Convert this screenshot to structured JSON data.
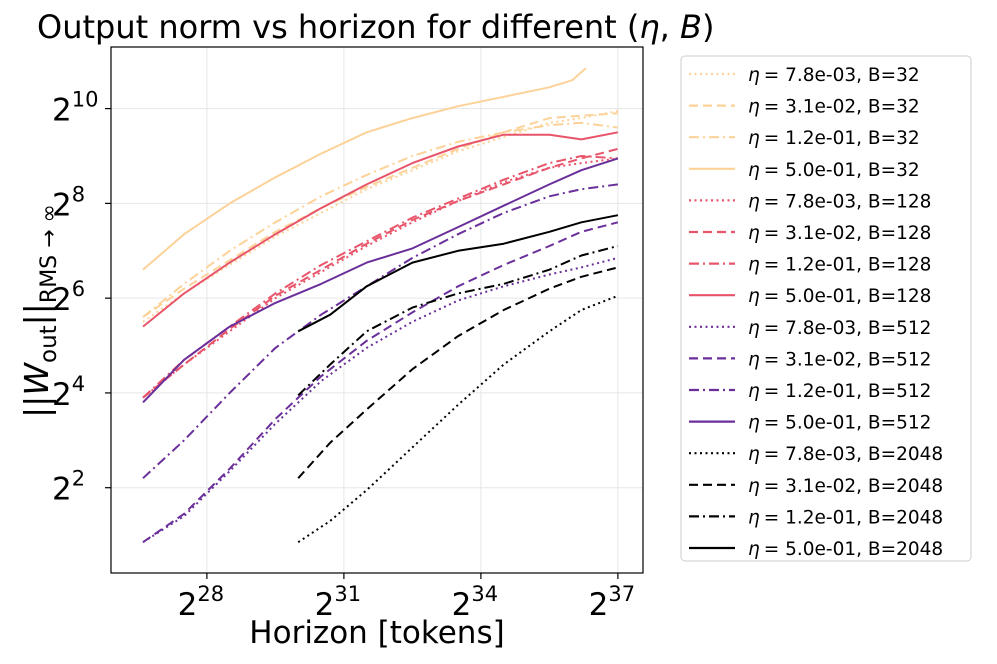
{
  "chart_data": {
    "type": "line",
    "title": "Output norm vs horizon for different (η, B)",
    "title_text": "Output norm vs horizon for different (",
    "title_eta": "η",
    "title_sep": ", ",
    "title_b": "B",
    "title_close": ")",
    "xlabel": "Horizon [tokens]",
    "ylabel": "||W_out||_RMS→∞",
    "ylabel_parts": {
      "bars_open": "||",
      "W": "W",
      "sub_out": "out",
      "bars_close": "||",
      "sub_rms": "RMS → ∞"
    },
    "x_scale": "log2",
    "y_scale": "log2",
    "xlim_log2": [
      25.9,
      37.55
    ],
    "ylim_log2": [
      0.2,
      11.3
    ],
    "grid": true,
    "legend_position": "outside-right",
    "xticks": [
      {
        "exp": 28,
        "base": "2",
        "sup": "28"
      },
      {
        "exp": 31,
        "base": "2",
        "sup": "31"
      },
      {
        "exp": 34,
        "base": "2",
        "sup": "34"
      },
      {
        "exp": 37,
        "base": "2",
        "sup": "37"
      }
    ],
    "yticks": [
      {
        "exp": 2,
        "base": "2",
        "sup": "2"
      },
      {
        "exp": 4,
        "base": "2",
        "sup": "4"
      },
      {
        "exp": 6,
        "base": "2",
        "sup": "6"
      },
      {
        "exp": 8,
        "base": "2",
        "sup": "8"
      },
      {
        "exp": 10,
        "base": "2",
        "sup": "10"
      }
    ],
    "series": [
      {
        "name": "η = 7.8e-03, B=32",
        "label": "= 7.8e-03, B=32",
        "color": "#fcd298",
        "dash": "dotted",
        "x": [
          26.6,
          27.5,
          28.5,
          29.5,
          30.5,
          31.5,
          32.5,
          33.5,
          34.5,
          35.5,
          36.2,
          37.0
        ],
        "y": [
          5.5,
          6.1,
          6.7,
          7.3,
          7.8,
          8.3,
          8.7,
          9.1,
          9.4,
          9.7,
          9.8,
          9.95
        ]
      },
      {
        "name": "η = 3.1e-02, B=32",
        "label": "= 3.1e-02, B=32",
        "color": "#fcd298",
        "dash": "dashed",
        "x": [
          26.6,
          27.5,
          28.5,
          29.5,
          30.5,
          31.5,
          32.5,
          33.5,
          34.5,
          35.5,
          36.2,
          37.0
        ],
        "y": [
          5.6,
          6.2,
          6.8,
          7.4,
          7.9,
          8.35,
          8.75,
          9.15,
          9.5,
          9.8,
          9.85,
          9.9
        ]
      },
      {
        "name": "η = 1.2e-01, B=32",
        "label": "= 1.2e-01, B=32",
        "color": "#fcd298",
        "dash": "dashdot",
        "x": [
          26.6,
          27.5,
          28.5,
          29.5,
          30.5,
          31.5,
          32.5,
          33.5,
          34.5,
          35.5,
          36.2,
          37.0
        ],
        "y": [
          5.6,
          6.3,
          7.0,
          7.6,
          8.15,
          8.6,
          9.0,
          9.3,
          9.5,
          9.65,
          9.7,
          9.6
        ]
      },
      {
        "name": "η = 5.0e-01, B=32",
        "label": "= 5.0e-01, B=32",
        "color": "#fcd298",
        "dash": "solid",
        "x": [
          26.6,
          27.5,
          28.5,
          29.5,
          30.5,
          31.5,
          32.5,
          33.5,
          34.5,
          35.5,
          36.0,
          36.3
        ],
        "y": [
          6.6,
          7.35,
          8.0,
          8.55,
          9.05,
          9.5,
          9.8,
          10.05,
          10.25,
          10.45,
          10.6,
          10.85
        ]
      },
      {
        "name": "η = 7.8e-03, B=128",
        "label": "= 7.8e-03, B=128",
        "color": "#e8556a",
        "dash": "dotted",
        "x": [
          26.6,
          27.5,
          28.5,
          29.5,
          30.5,
          31.5,
          32.5,
          33.5,
          34.5,
          35.5,
          36.2,
          37.0
        ],
        "y": [
          3.9,
          4.6,
          5.3,
          6.0,
          6.55,
          7.1,
          7.6,
          8.05,
          8.45,
          8.75,
          8.85,
          8.95
        ]
      },
      {
        "name": "η = 3.1e-02, B=128",
        "label": "= 3.1e-02, B=128",
        "color": "#e8556a",
        "dash": "dashed",
        "x": [
          26.6,
          27.5,
          28.5,
          29.5,
          30.5,
          31.5,
          32.5,
          33.5,
          34.5,
          35.5,
          36.2,
          37.0
        ],
        "y": [
          3.9,
          4.6,
          5.35,
          6.05,
          6.6,
          7.15,
          7.65,
          8.05,
          8.4,
          8.75,
          8.95,
          9.15
        ]
      },
      {
        "name": "η = 1.2e-01, B=128",
        "label": "= 1.2e-01, B=128",
        "color": "#e8556a",
        "dash": "dashdot",
        "x": [
          26.6,
          27.5,
          28.5,
          29.5,
          30.5,
          31.5,
          32.5,
          33.5,
          34.5,
          35.5,
          36.2,
          37.0
        ],
        "y": [
          3.9,
          4.7,
          5.4,
          6.1,
          6.7,
          7.2,
          7.7,
          8.1,
          8.5,
          8.85,
          9.0,
          8.95
        ]
      },
      {
        "name": "η = 5.0e-01, B=128",
        "label": "= 5.0e-01, B=128",
        "color": "#e8556a",
        "dash": "solid",
        "x": [
          26.6,
          27.5,
          28.5,
          29.5,
          30.5,
          31.5,
          32.5,
          33.5,
          34.5,
          35.5,
          36.2,
          37.0
        ],
        "y": [
          5.4,
          6.1,
          6.75,
          7.35,
          7.9,
          8.4,
          8.85,
          9.2,
          9.45,
          9.45,
          9.35,
          9.5
        ]
      },
      {
        "name": "η = 7.8e-03, B=512",
        "label": "= 7.8e-03, B=512",
        "color": "#6a2f9a",
        "dash": "dotted",
        "x": [
          26.6,
          27.5,
          28.5,
          29.5,
          30.5,
          31.5,
          32.5,
          33.5,
          34.5,
          35.5,
          36.2,
          37.0
        ],
        "y": [
          0.85,
          1.4,
          2.35,
          3.35,
          4.25,
          4.95,
          5.5,
          5.95,
          6.25,
          6.5,
          6.65,
          6.85
        ]
      },
      {
        "name": "η = 3.1e-02, B=512",
        "label": "= 3.1e-02, B=512",
        "color": "#6a2f9a",
        "dash": "dashed",
        "x": [
          26.6,
          27.5,
          28.5,
          29.5,
          30.5,
          31.5,
          32.5,
          33.5,
          34.5,
          35.5,
          36.2,
          37.0
        ],
        "y": [
          0.85,
          1.45,
          2.4,
          3.45,
          4.35,
          5.1,
          5.7,
          6.25,
          6.7,
          7.1,
          7.4,
          7.6
        ]
      },
      {
        "name": "η = 1.2e-01, B=512",
        "label": "= 1.2e-01, B=512",
        "color": "#6a2f9a",
        "dash": "dashdot",
        "x": [
          26.6,
          27.5,
          28.5,
          29.5,
          30.5,
          31.5,
          32.5,
          33.5,
          34.5,
          35.5,
          36.2,
          37.0
        ],
        "y": [
          2.2,
          3.0,
          4.0,
          4.95,
          5.65,
          6.25,
          6.85,
          7.35,
          7.8,
          8.15,
          8.3,
          8.4
        ]
      },
      {
        "name": "η = 5.0e-01, B=512",
        "label": "= 5.0e-01, B=512",
        "color": "#6a2f9a",
        "dash": "solid",
        "x": [
          26.6,
          27.5,
          28.5,
          29.5,
          30.5,
          31.5,
          32.5,
          33.5,
          34.5,
          35.5,
          36.2,
          37.0
        ],
        "y": [
          3.8,
          4.7,
          5.4,
          5.9,
          6.3,
          6.75,
          7.05,
          7.5,
          7.95,
          8.4,
          8.7,
          8.95
        ]
      },
      {
        "name": "η = 7.8e-03, B=2048",
        "label": "= 7.8e-03, B=2048",
        "color": "#000000",
        "dash": "dotted",
        "x": [
          30.0,
          30.7,
          31.5,
          32.5,
          33.5,
          34.5,
          35.5,
          36.2,
          37.0
        ],
        "y": [
          0.85,
          1.3,
          1.95,
          2.85,
          3.75,
          4.6,
          5.3,
          5.75,
          6.05
        ]
      },
      {
        "name": "η = 3.1e-02, B=2048",
        "label": "= 3.1e-02, B=2048",
        "color": "#000000",
        "dash": "dashed",
        "x": [
          30.0,
          30.7,
          31.5,
          32.5,
          33.5,
          34.5,
          35.5,
          36.2,
          37.0
        ],
        "y": [
          2.2,
          2.95,
          3.65,
          4.5,
          5.2,
          5.75,
          6.2,
          6.45,
          6.65
        ]
      },
      {
        "name": "η = 1.2e-01, B=2048",
        "label": "= 1.2e-01, B=2048",
        "color": "#000000",
        "dash": "dashdot",
        "x": [
          30.0,
          30.7,
          31.5,
          32.5,
          33.5,
          34.5,
          35.5,
          36.2,
          37.0
        ],
        "y": [
          3.95,
          4.6,
          5.3,
          5.8,
          6.1,
          6.3,
          6.6,
          6.9,
          7.1
        ]
      },
      {
        "name": "η = 5.0e-01, B=2048",
        "label": "= 5.0e-01, B=2048",
        "color": "#000000",
        "dash": "solid",
        "x": [
          30.0,
          30.7,
          31.5,
          32.5,
          33.5,
          34.5,
          35.5,
          36.2,
          37.0
        ],
        "y": [
          5.3,
          5.65,
          6.25,
          6.75,
          7.0,
          7.15,
          7.4,
          7.6,
          7.75
        ]
      }
    ]
  }
}
